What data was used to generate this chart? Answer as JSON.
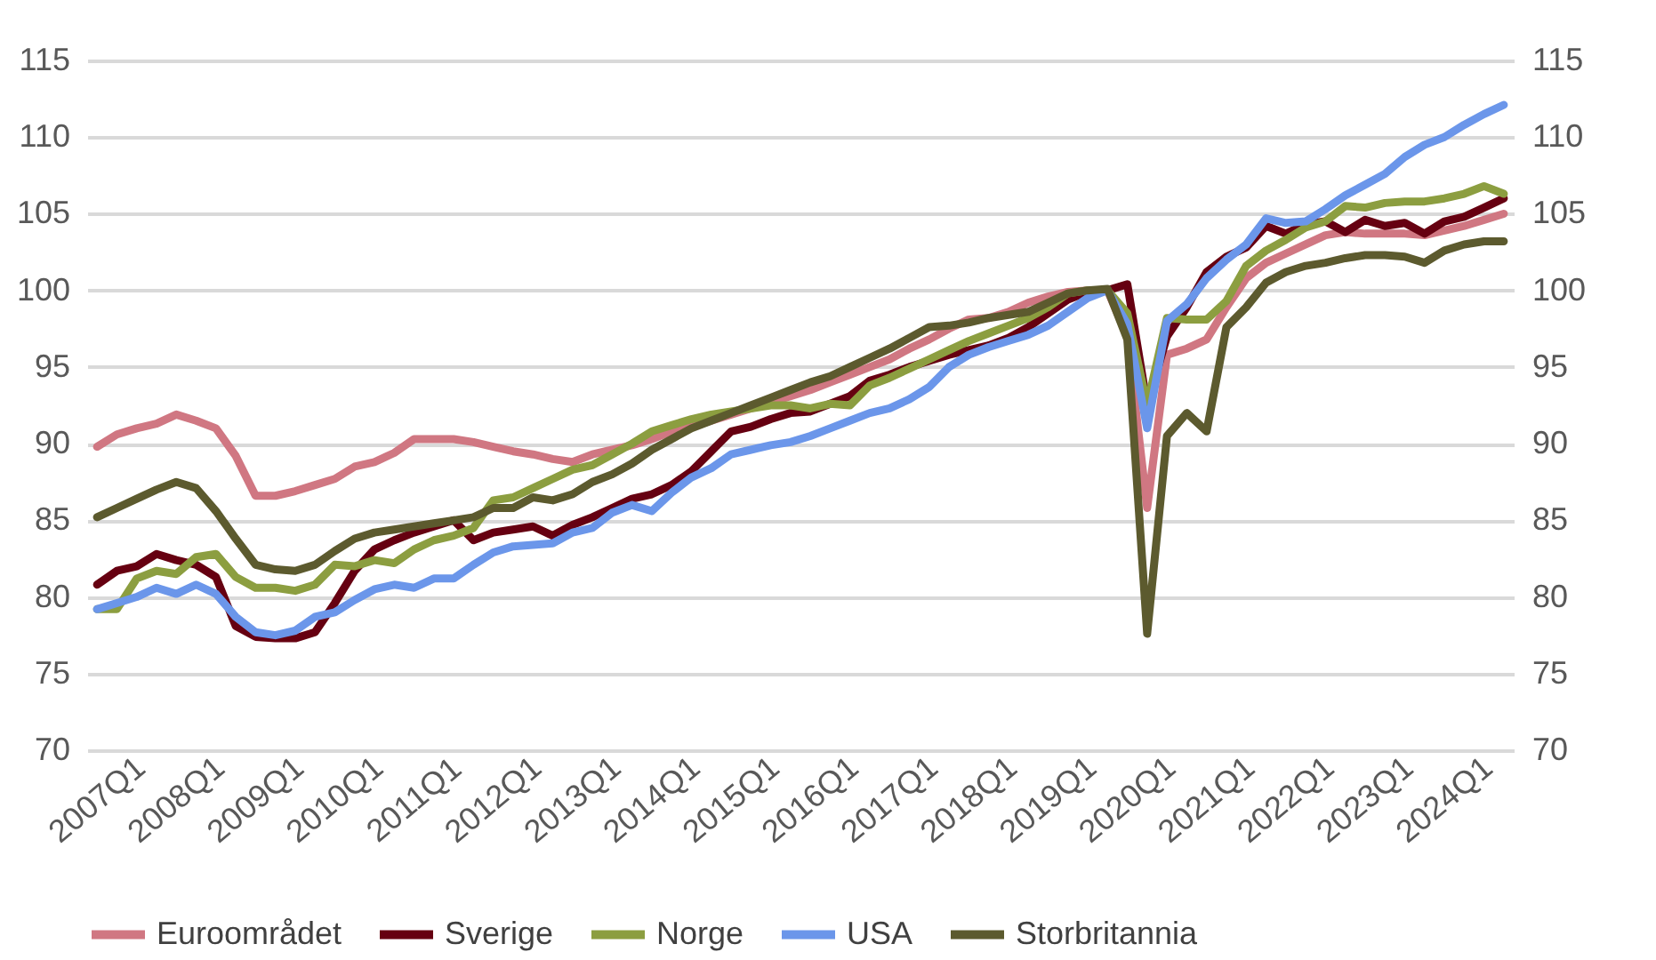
{
  "chart_data": {
    "type": "line",
    "categories": [
      "2007Q1",
      null,
      null,
      null,
      "2008Q1",
      null,
      null,
      null,
      "2009Q1",
      null,
      null,
      null,
      "2010Q1",
      null,
      null,
      null,
      "2011Q1",
      null,
      null,
      null,
      "2012Q1",
      null,
      null,
      null,
      "2013Q1",
      null,
      null,
      null,
      "2014Q1",
      null,
      null,
      null,
      "2015Q1",
      null,
      null,
      null,
      "2016Q1",
      null,
      null,
      null,
      "2017Q1",
      null,
      null,
      null,
      "2018Q1",
      null,
      null,
      null,
      "2019Q1",
      null,
      null,
      null,
      "2020Q1",
      null,
      null,
      null,
      "2021Q1",
      null,
      null,
      null,
      "2022Q1",
      null,
      null,
      null,
      "2023Q1",
      null,
      null,
      null,
      "2024Q1",
      null,
      null,
      null
    ],
    "series": [
      {
        "name": "Euroområdet",
        "color": "#d07782",
        "values": [
          89.8,
          90.6,
          91.0,
          91.3,
          91.9,
          91.5,
          91.0,
          89.2,
          86.6,
          86.6,
          86.9,
          87.3,
          87.7,
          88.5,
          88.8,
          89.4,
          90.3,
          90.3,
          90.3,
          90.1,
          89.8,
          89.5,
          89.3,
          89.0,
          88.8,
          89.3,
          89.6,
          89.9,
          90.3,
          90.8,
          91.1,
          91.5,
          91.9,
          92.3,
          92.7,
          93.1,
          93.5,
          94.0,
          94.5,
          95.0,
          95.5,
          96.2,
          96.8,
          97.5,
          98.1,
          98.2,
          98.6,
          99.2,
          99.6,
          99.9,
          100.0,
          100.0,
          97.0,
          85.8,
          95.8,
          96.2,
          96.8,
          98.9,
          100.8,
          101.8,
          102.4,
          103.0,
          103.6,
          103.8,
          103.7,
          103.7,
          103.7,
          103.6,
          103.9,
          104.2,
          104.6,
          105.0
        ]
      },
      {
        "name": "Sverige",
        "color": "#660011",
        "values": [
          80.8,
          81.7,
          82.0,
          82.8,
          82.4,
          82.1,
          81.3,
          78.1,
          77.4,
          77.3,
          77.3,
          77.7,
          79.6,
          81.7,
          83.1,
          83.7,
          84.2,
          84.6,
          85.0,
          83.7,
          84.2,
          84.4,
          84.6,
          84.0,
          84.7,
          85.2,
          85.8,
          86.4,
          86.7,
          87.3,
          88.2,
          89.5,
          90.8,
          91.1,
          91.6,
          92.0,
          92.1,
          92.6,
          93.1,
          94.1,
          94.5,
          95.0,
          95.4,
          95.8,
          96.1,
          96.4,
          96.9,
          97.6,
          98.5,
          99.4,
          99.9,
          100.0,
          100.4,
          92.5,
          97.0,
          98.9,
          101.2,
          102.2,
          102.8,
          104.2,
          103.7,
          104.3,
          104.5,
          103.8,
          104.6,
          104.2,
          104.4,
          103.7,
          104.5,
          104.8,
          105.4,
          106.0
        ]
      },
      {
        "name": "Norge",
        "color": "#8c9e40",
        "values": [
          79.2,
          79.2,
          81.2,
          81.7,
          81.5,
          82.6,
          82.8,
          81.3,
          80.6,
          80.6,
          80.4,
          80.8,
          82.1,
          82.0,
          82.4,
          82.2,
          83.1,
          83.7,
          84.0,
          84.5,
          86.3,
          86.5,
          87.1,
          87.7,
          88.3,
          88.6,
          89.3,
          90.0,
          90.8,
          91.2,
          91.6,
          91.9,
          92.1,
          92.3,
          92.5,
          92.5,
          92.3,
          92.6,
          92.5,
          93.8,
          94.3,
          94.9,
          95.5,
          96.1,
          96.7,
          97.2,
          97.7,
          98.2,
          98.9,
          99.8,
          100.0,
          100.0,
          98.5,
          92.5,
          98.2,
          98.1,
          98.1,
          99.3,
          101.6,
          102.6,
          103.3,
          104.1,
          104.5,
          105.5,
          105.4,
          105.7,
          105.8,
          105.8,
          106.0,
          106.3,
          106.8,
          106.3
        ]
      },
      {
        "name": "USA",
        "color": "#6b96ea",
        "values": [
          79.2,
          79.6,
          80.0,
          80.6,
          80.2,
          80.8,
          80.2,
          78.7,
          77.7,
          77.5,
          77.8,
          78.7,
          79.0,
          79.8,
          80.5,
          80.8,
          80.6,
          81.2,
          81.2,
          82.1,
          82.9,
          83.3,
          83.4,
          83.5,
          84.2,
          84.5,
          85.5,
          86.0,
          85.6,
          86.8,
          87.8,
          88.4,
          89.3,
          89.6,
          89.9,
          90.1,
          90.5,
          91.0,
          91.5,
          92.0,
          92.3,
          92.9,
          93.7,
          95.0,
          95.8,
          96.3,
          96.7,
          97.1,
          97.7,
          98.6,
          99.5,
          100.0,
          97.8,
          91.0,
          98.0,
          99.1,
          100.8,
          102.0,
          103.0,
          104.7,
          104.4,
          104.5,
          105.3,
          106.2,
          106.9,
          107.6,
          108.7,
          109.5,
          110.0,
          110.8,
          111.5,
          112.1
        ]
      },
      {
        "name": "Storbritannia",
        "color": "#5c5a2e",
        "values": [
          85.2,
          85.8,
          86.4,
          87.0,
          87.5,
          87.1,
          85.6,
          83.8,
          82.1,
          81.8,
          81.7,
          82.1,
          83.0,
          83.8,
          84.2,
          84.4,
          84.6,
          84.8,
          85.0,
          85.2,
          85.8,
          85.8,
          86.5,
          86.3,
          86.7,
          87.5,
          88.0,
          88.7,
          89.6,
          90.3,
          91.0,
          91.5,
          92.0,
          92.5,
          93.0,
          93.5,
          94.0,
          94.4,
          95.0,
          95.6,
          96.2,
          96.9,
          97.6,
          97.7,
          97.9,
          98.2,
          98.4,
          98.6,
          99.2,
          99.8,
          100.0,
          100.1,
          96.8,
          77.6,
          90.5,
          92.0,
          90.8,
          97.6,
          98.9,
          100.5,
          101.2,
          101.6,
          101.8,
          102.1,
          102.3,
          102.3,
          102.2,
          101.8,
          102.6,
          103.0,
          103.2,
          103.2
        ]
      }
    ],
    "ylim": [
      70,
      115
    ],
    "yticks": [
      70,
      75,
      80,
      85,
      90,
      95,
      100,
      105,
      110,
      115
    ],
    "y2lim": [
      70,
      115
    ],
    "y2ticks": [
      70,
      75,
      80,
      85,
      90,
      95,
      100,
      105,
      110,
      115
    ],
    "grid": "y",
    "legend": "bottom",
    "line_style": "solid",
    "marker": "none"
  }
}
